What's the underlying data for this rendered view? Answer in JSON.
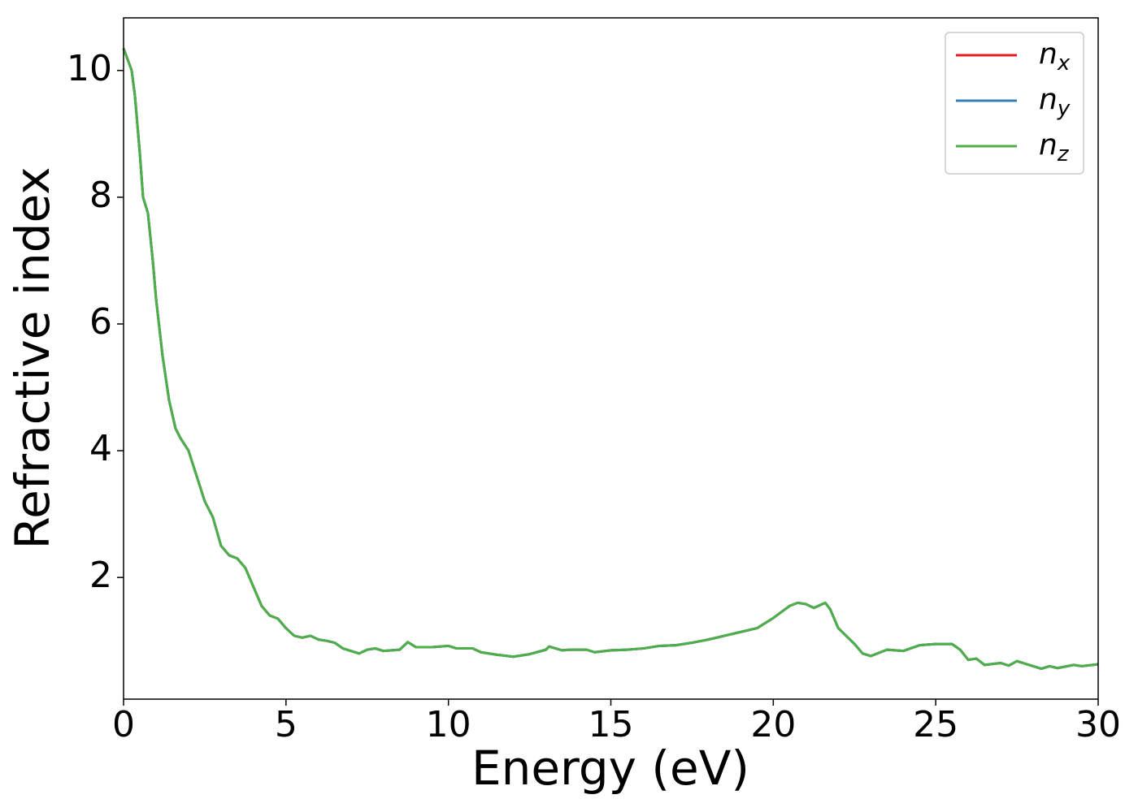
{
  "chart_data": {
    "type": "line",
    "xlabel": "Energy (eV)",
    "ylabel": "Refractive index",
    "x": [
      0,
      0.25,
      0.35,
      0.5,
      0.6,
      0.75,
      0.9,
      1.0,
      1.2,
      1.4,
      1.6,
      1.75,
      2.0,
      2.25,
      2.5,
      2.75,
      3.0,
      3.25,
      3.5,
      3.75,
      4.0,
      4.25,
      4.5,
      4.75,
      5.0,
      5.25,
      5.5,
      5.75,
      6.0,
      6.25,
      6.5,
      6.75,
      7.0,
      7.25,
      7.5,
      7.75,
      8.0,
      8.5,
      8.75,
      9.0,
      9.5,
      10.0,
      10.25,
      10.75,
      11.0,
      11.5,
      12.0,
      12.5,
      13.0,
      13.1,
      13.5,
      13.75,
      14.25,
      14.5,
      15.0,
      15.5,
      16.0,
      16.5,
      17.0,
      17.5,
      18.0,
      18.5,
      19.0,
      19.5,
      20.0,
      20.5,
      20.75,
      21.0,
      21.25,
      21.6,
      21.75,
      22.0,
      22.5,
      22.75,
      23.0,
      23.5,
      24.0,
      24.5,
      25.0,
      25.5,
      25.75,
      26.0,
      26.25,
      26.5,
      27.0,
      27.25,
      27.5,
      28.0,
      28.25,
      28.5,
      28.75,
      29.25,
      29.5,
      30.0
    ],
    "series": [
      {
        "name": "n_x",
        "color": "#e41a1c",
        "values": [
          10.35,
          10.0,
          9.6,
          8.7,
          8.0,
          7.75,
          7.0,
          6.4,
          5.5,
          4.8,
          4.35,
          4.2,
          4.0,
          3.6,
          3.2,
          2.95,
          2.5,
          2.35,
          2.3,
          2.15,
          1.85,
          1.55,
          1.4,
          1.35,
          1.2,
          1.08,
          1.05,
          1.08,
          1.02,
          1.0,
          0.97,
          0.88,
          0.84,
          0.8,
          0.86,
          0.88,
          0.84,
          0.86,
          0.98,
          0.9,
          0.9,
          0.92,
          0.88,
          0.88,
          0.82,
          0.78,
          0.75,
          0.79,
          0.86,
          0.91,
          0.85,
          0.86,
          0.86,
          0.82,
          0.85,
          0.86,
          0.88,
          0.92,
          0.93,
          0.97,
          1.02,
          1.08,
          1.14,
          1.2,
          1.36,
          1.55,
          1.6,
          1.58,
          1.52,
          1.6,
          1.5,
          1.2,
          0.95,
          0.8,
          0.76,
          0.86,
          0.84,
          0.93,
          0.95,
          0.95,
          0.86,
          0.7,
          0.72,
          0.62,
          0.65,
          0.61,
          0.68,
          0.6,
          0.56,
          0.6,
          0.57,
          0.62,
          0.6,
          0.63
        ]
      },
      {
        "name": "n_y",
        "color": "#377eb8",
        "values": [
          10.35,
          10.0,
          9.6,
          8.7,
          8.0,
          7.75,
          7.0,
          6.4,
          5.5,
          4.8,
          4.35,
          4.2,
          4.0,
          3.6,
          3.2,
          2.95,
          2.5,
          2.35,
          2.3,
          2.15,
          1.85,
          1.55,
          1.4,
          1.35,
          1.2,
          1.08,
          1.05,
          1.08,
          1.02,
          1.0,
          0.97,
          0.88,
          0.84,
          0.8,
          0.86,
          0.88,
          0.84,
          0.86,
          0.98,
          0.9,
          0.9,
          0.92,
          0.88,
          0.88,
          0.82,
          0.78,
          0.75,
          0.79,
          0.86,
          0.91,
          0.85,
          0.86,
          0.86,
          0.82,
          0.85,
          0.86,
          0.88,
          0.92,
          0.93,
          0.97,
          1.02,
          1.08,
          1.14,
          1.2,
          1.36,
          1.55,
          1.6,
          1.58,
          1.52,
          1.6,
          1.5,
          1.2,
          0.95,
          0.8,
          0.76,
          0.86,
          0.84,
          0.93,
          0.95,
          0.95,
          0.86,
          0.7,
          0.72,
          0.62,
          0.65,
          0.61,
          0.68,
          0.6,
          0.56,
          0.6,
          0.57,
          0.62,
          0.6,
          0.63
        ]
      },
      {
        "name": "n_z",
        "color": "#4daf4a",
        "values": [
          10.35,
          10.0,
          9.6,
          8.7,
          8.0,
          7.75,
          7.0,
          6.4,
          5.5,
          4.8,
          4.35,
          4.2,
          4.0,
          3.6,
          3.2,
          2.95,
          2.5,
          2.35,
          2.3,
          2.15,
          1.85,
          1.55,
          1.4,
          1.35,
          1.2,
          1.08,
          1.05,
          1.08,
          1.02,
          1.0,
          0.97,
          0.88,
          0.84,
          0.8,
          0.86,
          0.88,
          0.84,
          0.86,
          0.98,
          0.9,
          0.9,
          0.92,
          0.88,
          0.88,
          0.82,
          0.78,
          0.75,
          0.79,
          0.86,
          0.91,
          0.85,
          0.86,
          0.86,
          0.82,
          0.85,
          0.86,
          0.88,
          0.92,
          0.93,
          0.97,
          1.02,
          1.08,
          1.14,
          1.2,
          1.36,
          1.55,
          1.6,
          1.58,
          1.52,
          1.6,
          1.5,
          1.2,
          0.95,
          0.8,
          0.76,
          0.86,
          0.84,
          0.93,
          0.95,
          0.95,
          0.86,
          0.7,
          0.72,
          0.62,
          0.65,
          0.61,
          0.68,
          0.6,
          0.56,
          0.6,
          0.57,
          0.62,
          0.6,
          0.63
        ]
      }
    ],
    "xlim": [
      0,
      30
    ],
    "xticks": [
      0,
      5,
      10,
      15,
      20,
      25,
      30
    ],
    "ylim": [
      0.08,
      10.83
    ],
    "yticks": [
      2,
      4,
      6,
      8,
      10
    ],
    "grid": false,
    "legend": "upper right"
  }
}
